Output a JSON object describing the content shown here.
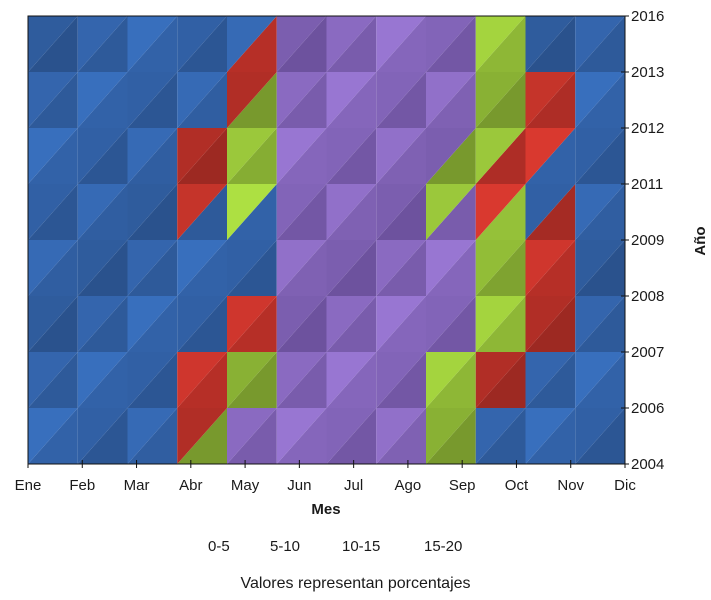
{
  "chart_data": {
    "type": "heatmap",
    "title": "",
    "xlabel": "Mes",
    "ylabel": "Año",
    "x_categories": [
      "Ene",
      "Feb",
      "Mar",
      "Abr",
      "May",
      "Jun",
      "Jul",
      "Ago",
      "Sep",
      "Oct",
      "Nov",
      "Dic"
    ],
    "y_categories": [
      "2004",
      "2006",
      "2007",
      "2008",
      "2009",
      "2011",
      "2012",
      "2013",
      "2016"
    ],
    "value_unit": "%",
    "values": [
      [
        0,
        0,
        5,
        12,
        17,
        20,
        20,
        20,
        13,
        5,
        0,
        0
      ],
      [
        0,
        0,
        3,
        9,
        15,
        20,
        20,
        20,
        11,
        4,
        0,
        0
      ],
      [
        0,
        0,
        0,
        5,
        10,
        20,
        20,
        20,
        16,
        11,
        6,
        0
      ],
      [
        0,
        0,
        0,
        0,
        4,
        19,
        20,
        20,
        20,
        14,
        8,
        2
      ],
      [
        0,
        0,
        0,
        0,
        0,
        17,
        20,
        20,
        20,
        14,
        8,
        1
      ],
      [
        0,
        0,
        4,
        9,
        15,
        18,
        20,
        20,
        12,
        6,
        2,
        0
      ],
      [
        0,
        0,
        0,
        5,
        12,
        20,
        20,
        20,
        20,
        16,
        9,
        0
      ],
      [
        0,
        0,
        0,
        0,
        6,
        20,
        20,
        20,
        20,
        11,
        4,
        0
      ],
      [
        0,
        0,
        0,
        0,
        3,
        20,
        20,
        20,
        19,
        10,
        4,
        0
      ]
    ],
    "legend": [
      {
        "label": "0-5",
        "color": "#1f4e8c"
      },
      {
        "label": "5-10",
        "color": "#cc2a24"
      },
      {
        "label": "10-15",
        "color": "#9fd62f"
      },
      {
        "label": "15-20",
        "color": "#7a55b8"
      }
    ],
    "legend_placement": "bottom",
    "note": "Valores representan porcentajes",
    "grid": false
  }
}
